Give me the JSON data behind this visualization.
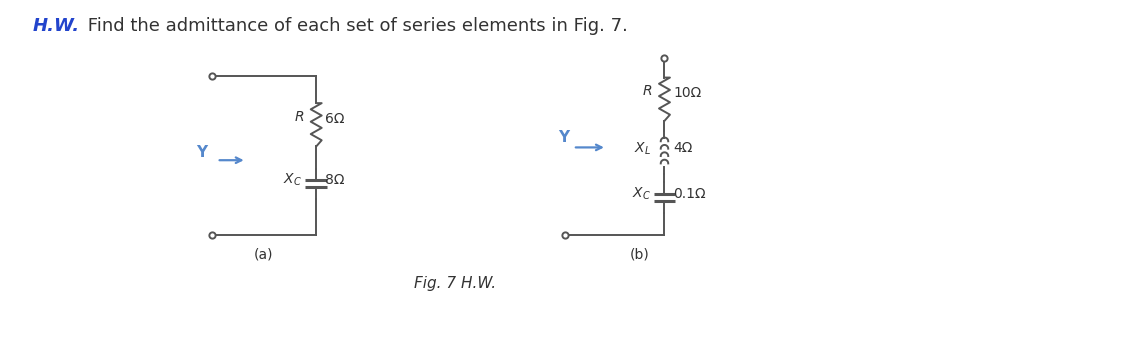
{
  "title_italic_part": "H.W.",
  "title_normal_part": " Find the admittance of each set of series elements in Fig. 7.",
  "fig_caption": "Fig. 7 H.W.",
  "circuit_a_label": "(a)",
  "circuit_b_label": "(b)",
  "label_Y_color": "#5588cc",
  "line_color": "#555555",
  "text_color": "#333333",
  "background_color": "#ffffff",
  "R_a_label": "R",
  "R_a_value": "6Ω",
  "Xc_a_label": "X_C",
  "Xc_a_value": "8Ω",
  "R_b_label": "R",
  "R_b_value": "10Ω",
  "XL_b_label": "X_L",
  "XL_b_value": "4Ω",
  "Xc_b_label": "X_C",
  "Xc_b_value": "0.1Ω"
}
